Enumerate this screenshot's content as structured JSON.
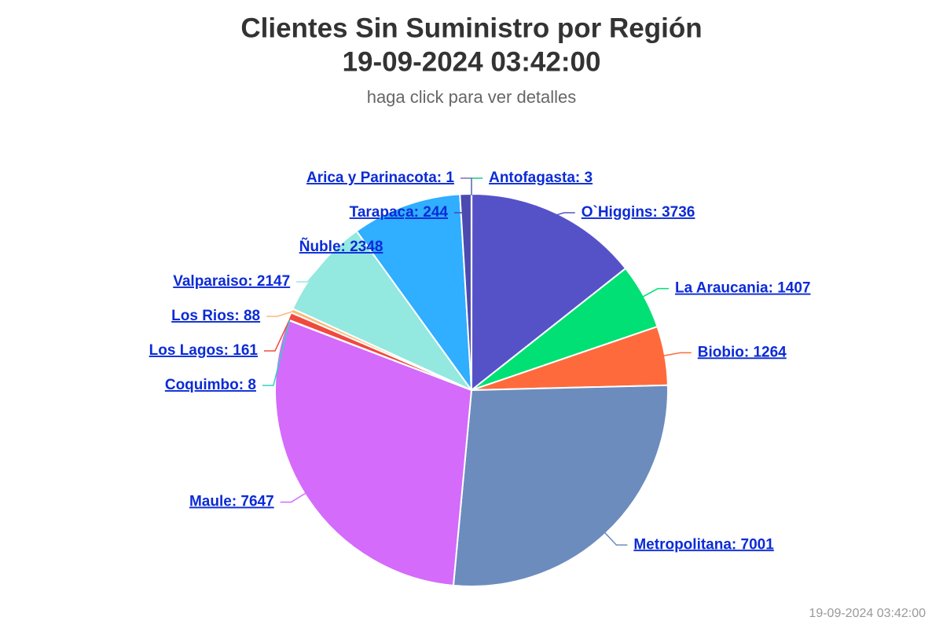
{
  "chart_data": {
    "type": "pie",
    "title": [
      "Clientes Sin Suministro por Región",
      "19-09-2024 03:42:00"
    ],
    "subtitle": "haga click para ver detalles",
    "values": [
      3,
      3736,
      1407,
      1264,
      7001,
      7647,
      8,
      161,
      88,
      2147,
      2348,
      244,
      1
    ],
    "value_labels": [
      "Antofagasta: 3",
      "O`Higgins: 3736",
      "La Araucania: 1407",
      "Biobio: 1264",
      "Metropolitana: 7001",
      "Maule: 7647",
      "Coquimbo: 8",
      "Los Lagos: 161",
      "Los Rios: 88",
      "Valparaiso: 2147",
      "Ñuble: 2348",
      "Tarapaca: 244",
      "Arica y Parinacota: 1"
    ],
    "colors": [
      "#19c98a",
      "#5552c8",
      "#00e074",
      "#ff6a3d",
      "#6b8cbd",
      "#d46bfa",
      "#2dd4bf",
      "#f04a3e",
      "#f9b97a",
      "#93e8e0",
      "#30aeff",
      "#4b4ab0",
      "#7a72b8"
    ],
    "credits": "19-09-2024 03:42:00"
  }
}
